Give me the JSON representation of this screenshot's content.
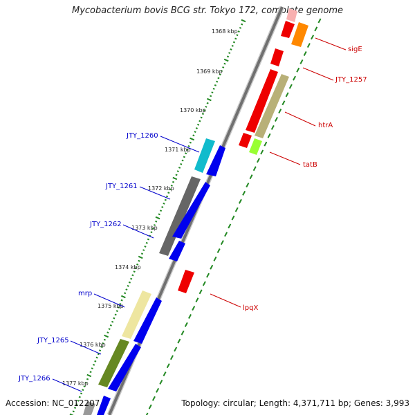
{
  "title": "Mycobacterium bovis BCG str. Tokyo 172, complete genome",
  "accession": "Accession: NC_012207",
  "summary": "Topology: circular; Length: 4,371,711 bp; Genes: 3,993",
  "scale_labels": [
    "1368 kbp",
    "1369 kbp",
    "1370 kbp",
    "1371 kbp",
    "1372 kbp",
    "1373 kbp",
    "1374 kbp",
    "1375 kbp",
    "1376 kbp",
    "1377 kbp"
  ],
  "gene_labels": {
    "sigE": "sigE",
    "JTY_1257": "JTY_1257",
    "htrA": "htrA",
    "tatB": "tatB",
    "lpqX": "lpqX",
    "JTY_1260": "JTY_1260",
    "JTY_1261": "JTY_1261",
    "JTY_1262": "JTY_1262",
    "mrp": "mrp",
    "JTY_1265": "JTY_1265",
    "JTY_1266": "JTY_1266"
  },
  "colors": {
    "forward_label": "#cc0000",
    "reverse_label": "#0000cc",
    "backbone": "#808080",
    "tick": "#228822",
    "cds_red": "#ee0000",
    "cds_blue": "#0000ee",
    "cds_orange": "#ff8800",
    "cds_khaki": "#b8b078",
    "cds_lime": "#99ff33",
    "cds_cyan": "#11bbcc",
    "cds_gray": "#666666",
    "cds_paleyellow": "#eee6a0",
    "cds_olive": "#668822"
  }
}
